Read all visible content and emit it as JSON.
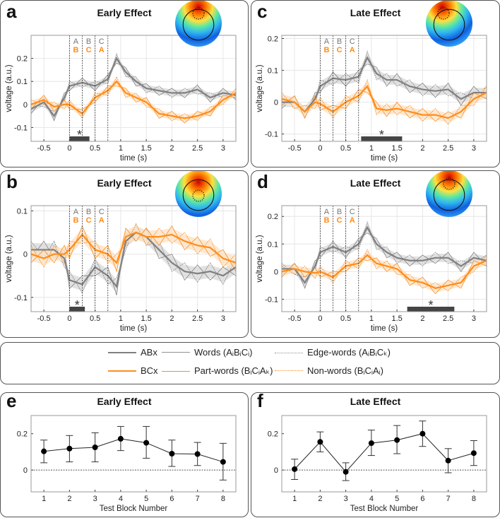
{
  "colors": {
    "abx": "#808080",
    "bcx": "#ff8c1a",
    "abx_band": "#d9d9d9",
    "bcx_band": "#fde2c6",
    "sigbar": "#444444"
  },
  "legend": {
    "abx": "ABx",
    "bcx": "BCx",
    "words": "Words (AᵢBᵢCᵢ)",
    "part_words": "Part-words (BᵢCᵢAₖ)",
    "edge_words": "Edge-words (AᵢBᵢCₖ)",
    "non_words": "Non-words (BᵢCᵢAᵢ)"
  },
  "chart_data": [
    {
      "panel": "a",
      "type": "line",
      "title": "Early Effect",
      "xlabel": "time (s)",
      "ylabel": "voltage (a.u.)",
      "xlim": [
        -0.75,
        3.25
      ],
      "ylim": [
        -0.16,
        0.3
      ],
      "xticks": [
        -0.5,
        0,
        0.5,
        1,
        1.5,
        2,
        2.5,
        3
      ],
      "yticks": [
        -0.1,
        0,
        0.1,
        0.2
      ],
      "markers": [
        0,
        0.25,
        0.5,
        0.75
      ],
      "abx_letters": [
        "A",
        "B",
        "C"
      ],
      "bcx_letters": [
        "B",
        "C",
        "A"
      ],
      "significance": {
        "range": [
          0,
          0.39
        ],
        "label": "*"
      },
      "grid": true,
      "topomap": "frontal-positive",
      "x": [
        -0.75,
        -0.5,
        -0.3,
        -0.1,
        0,
        0.25,
        0.5,
        0.75,
        0.92,
        1.1,
        1.3,
        1.5,
        1.75,
        2,
        2.25,
        2.5,
        2.75,
        3,
        3.25
      ],
      "series": [
        {
          "name": "ABx",
          "values": [
            -0.02,
            0.01,
            -0.05,
            0.03,
            0.08,
            0.095,
            0.08,
            0.11,
            0.2,
            0.14,
            0.1,
            0.07,
            0.06,
            0.05,
            0.05,
            0.065,
            0.03,
            0.05,
            0.04
          ]
        },
        {
          "name": "BCx",
          "values": [
            0.0,
            0.02,
            -0.01,
            0.0,
            0.0,
            -0.04,
            0.03,
            0.06,
            0.1,
            0.05,
            0.03,
            0.01,
            -0.04,
            -0.05,
            -0.06,
            -0.05,
            -0.03,
            0.02,
            0.05
          ]
        }
      ]
    },
    {
      "panel": "b",
      "type": "line",
      "title": "Early Effect",
      "xlabel": "time (s)",
      "ylabel": "voltage (a.u.)",
      "xlim": [
        -0.75,
        3.25
      ],
      "ylim": [
        -0.133,
        0.112
      ],
      "xticks": [
        -0.5,
        0,
        0.5,
        1,
        1.5,
        2,
        2.5,
        3
      ],
      "yticks": [
        -0.1,
        0,
        0.1
      ],
      "markers": [
        0,
        0.25,
        0.5,
        0.75
      ],
      "abx_letters": [
        "A",
        "B",
        "C"
      ],
      "bcx_letters": [
        "B",
        "C",
        "A"
      ],
      "significance": {
        "range": [
          0,
          0.3
        ],
        "label": "*"
      },
      "grid": true,
      "topomap": "central-negative",
      "x": [
        -0.75,
        -0.5,
        -0.3,
        -0.1,
        0,
        0.25,
        0.5,
        0.75,
        0.92,
        1.1,
        1.3,
        1.5,
        1.75,
        2,
        2.25,
        2.5,
        2.75,
        3,
        3.25
      ],
      "series": [
        {
          "name": "ABx",
          "values": [
            0.01,
            0.01,
            0.01,
            -0.01,
            -0.06,
            -0.07,
            -0.03,
            -0.05,
            -0.075,
            0.03,
            0.05,
            0.04,
            0.01,
            -0.02,
            -0.04,
            -0.045,
            -0.04,
            -0.05,
            -0.03
          ]
        },
        {
          "name": "BCx",
          "values": [
            0.0,
            -0.01,
            0.0,
            0.0,
            0.01,
            0.045,
            0.01,
            0.0,
            -0.02,
            0.04,
            0.05,
            0.04,
            0.04,
            0.045,
            0.03,
            0.02,
            0.015,
            -0.01,
            -0.02
          ]
        }
      ]
    },
    {
      "panel": "c",
      "type": "line",
      "title": "Late Effect",
      "xlabel": "time (s)",
      "ylabel": "voltage (a.u.)",
      "xlim": [
        -0.75,
        3.25
      ],
      "ylim": [
        -0.123,
        0.21
      ],
      "xticks": [
        -0.5,
        0,
        0.5,
        1,
        1.5,
        2,
        2.5,
        3
      ],
      "yticks": [
        -0.1,
        0,
        0.1,
        0.2
      ],
      "markers": [
        0,
        0.25,
        0.5,
        0.75
      ],
      "abx_letters": [
        "A",
        "B",
        "C"
      ],
      "bcx_letters": [
        "B",
        "C",
        "A"
      ],
      "significance": {
        "range": [
          0.8,
          1.6
        ],
        "label": "*"
      },
      "grid": true,
      "topomap": "left-frontal-positive",
      "x": [
        -0.75,
        -0.5,
        -0.3,
        -0.1,
        0,
        0.25,
        0.5,
        0.75,
        0.92,
        1.1,
        1.3,
        1.5,
        1.75,
        2,
        2.25,
        2.5,
        2.75,
        3,
        3.25
      ],
      "series": [
        {
          "name": "ABx",
          "values": [
            0.0,
            0.0,
            -0.03,
            0.01,
            0.05,
            0.075,
            0.07,
            0.08,
            0.14,
            0.09,
            0.07,
            0.07,
            0.05,
            0.04,
            0.035,
            0.04,
            0.01,
            0.03,
            0.03
          ]
        },
        {
          "name": "BCx",
          "values": [
            0.01,
            0.0,
            -0.03,
            0.0,
            -0.005,
            -0.03,
            0.0,
            0.02,
            0.05,
            -0.02,
            -0.025,
            -0.02,
            -0.03,
            -0.04,
            -0.04,
            -0.05,
            -0.03,
            0.01,
            0.03
          ]
        }
      ]
    },
    {
      "panel": "d",
      "type": "line",
      "title": "Late Effect",
      "xlabel": "time (s)",
      "ylabel": "voltage (a.u.)",
      "xlim": [
        -0.75,
        3.25
      ],
      "ylim": [
        -0.145,
        0.239
      ],
      "xticks": [
        -0.5,
        0,
        0.5,
        1,
        1.5,
        2,
        2.5,
        3
      ],
      "yticks": [
        -0.1,
        0,
        0.1,
        0.2
      ],
      "markers": [
        0,
        0.25,
        0.5,
        0.75
      ],
      "abx_letters": [
        "A",
        "B",
        "C"
      ],
      "bcx_letters": [
        "B",
        "C",
        "A"
      ],
      "significance": {
        "range": [
          1.7,
          2.62
        ],
        "label": "*"
      },
      "grid": true,
      "topomap": "frontal-positive",
      "x": [
        -0.75,
        -0.5,
        -0.3,
        -0.1,
        0,
        0.25,
        0.5,
        0.75,
        0.92,
        1.1,
        1.3,
        1.5,
        1.75,
        2,
        2.25,
        2.5,
        2.75,
        3,
        3.25
      ],
      "series": [
        {
          "name": "ABx",
          "values": [
            0.01,
            0.01,
            -0.04,
            0.02,
            0.07,
            0.09,
            0.07,
            0.1,
            0.16,
            0.1,
            0.07,
            0.05,
            0.04,
            0.04,
            0.05,
            0.05,
            0.02,
            0.05,
            0.04
          ]
        },
        {
          "name": "BCx",
          "values": [
            0.0,
            0.01,
            0.0,
            -0.005,
            0.0,
            -0.02,
            0.02,
            0.03,
            0.06,
            0.03,
            0.02,
            0.01,
            -0.03,
            -0.04,
            -0.06,
            -0.05,
            -0.04,
            0.02,
            0.04
          ]
        }
      ]
    },
    {
      "panel": "e",
      "type": "line",
      "title": "Early Effect",
      "xlabel": "Test Block Number",
      "ylabel": "",
      "xlim": [
        0.5,
        8.5
      ],
      "ylim": [
        -0.12,
        0.3
      ],
      "xticks": [
        1,
        2,
        3,
        4,
        5,
        6,
        7,
        8
      ],
      "yticks": [
        0,
        0.2
      ],
      "x": [
        1,
        2,
        3,
        4,
        5,
        6,
        7,
        8
      ],
      "values": [
        0.103,
        0.118,
        0.125,
        0.172,
        0.15,
        0.09,
        0.088,
        0.045
      ],
      "err_low": [
        0.04,
        0.045,
        0.045,
        0.107,
        0.065,
        0.02,
        0.025,
        -0.055
      ],
      "err_high": [
        0.165,
        0.19,
        0.205,
        0.24,
        0.24,
        0.165,
        0.152,
        0.147
      ]
    },
    {
      "panel": "f",
      "type": "line",
      "title": "Late Effect",
      "xlabel": "Test Block Number",
      "ylabel": "",
      "xlim": [
        0.5,
        8.5
      ],
      "ylim": [
        -0.12,
        0.3
      ],
      "xticks": [
        1,
        2,
        3,
        4,
        5,
        6,
        7,
        8
      ],
      "yticks": [
        0,
        0.2
      ],
      "x": [
        1,
        2,
        3,
        4,
        5,
        6,
        7,
        8
      ],
      "values": [
        0.005,
        0.155,
        -0.01,
        0.148,
        0.165,
        0.2,
        0.052,
        0.093
      ],
      "err_low": [
        -0.052,
        0.1,
        -0.058,
        0.08,
        0.09,
        0.13,
        -0.015,
        0.025
      ],
      "err_high": [
        0.06,
        0.21,
        0.04,
        0.22,
        0.245,
        0.27,
        0.118,
        0.162
      ]
    }
  ]
}
